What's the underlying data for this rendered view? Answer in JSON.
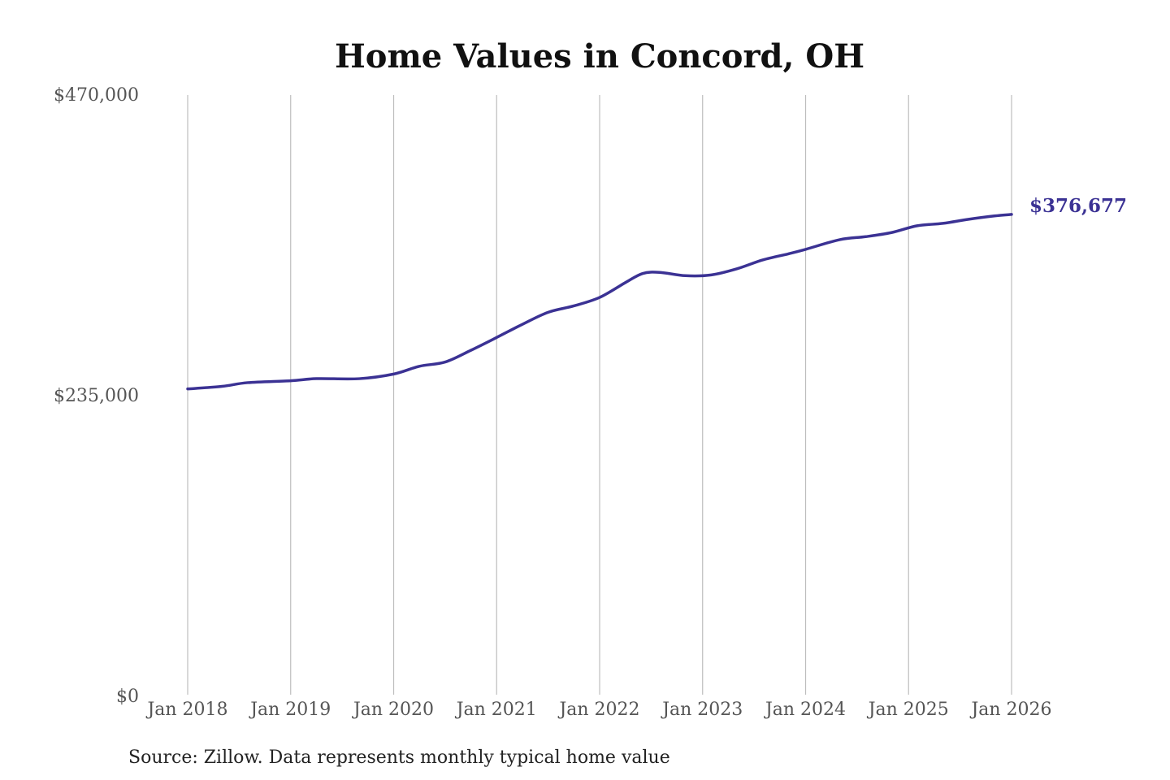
{
  "colors": {
    "series": "#3b3294",
    "grid": "#bdbdbd",
    "title": "#111111",
    "tick_text": "#555555"
  },
  "chart_data": {
    "type": "line",
    "title": "Home Values in Concord, OH",
    "xlabel": "",
    "ylabel": "",
    "ylim": [
      0,
      470000
    ],
    "grid": "vertical",
    "y_ticks": [
      {
        "value": 0,
        "label": "$0"
      },
      {
        "value": 235000,
        "label": "$235,000"
      },
      {
        "value": 470000,
        "label": "$470,000"
      }
    ],
    "x_ticks": [
      {
        "value": "2018-01",
        "label": "Jan 2018"
      },
      {
        "value": "2019-01",
        "label": "Jan 2019"
      },
      {
        "value": "2020-01",
        "label": "Jan 2020"
      },
      {
        "value": "2021-01",
        "label": "Jan 2021"
      },
      {
        "value": "2022-01",
        "label": "Jan 2022"
      },
      {
        "value": "2023-01",
        "label": "Jan 2023"
      },
      {
        "value": "2024-01",
        "label": "Jan 2024"
      },
      {
        "value": "2025-01",
        "label": "Jan 2025"
      },
      {
        "value": "2026-01",
        "label": "Jan 2026"
      }
    ],
    "series": [
      {
        "points": [
          {
            "x": "2018-01",
            "y": 240300
          },
          {
            "x": "2018-05",
            "y": 242300
          },
          {
            "x": "2018-08",
            "y": 245200
          },
          {
            "x": "2019-01",
            "y": 246700
          },
          {
            "x": "2019-04",
            "y": 248300
          },
          {
            "x": "2019-09",
            "y": 248300
          },
          {
            "x": "2020-01",
            "y": 251900
          },
          {
            "x": "2020-04",
            "y": 258000
          },
          {
            "x": "2020-07",
            "y": 261300
          },
          {
            "x": "2020-10",
            "y": 270500
          },
          {
            "x": "2021-01",
            "y": 280500
          },
          {
            "x": "2021-04",
            "y": 290800
          },
          {
            "x": "2021-07",
            "y": 300200
          },
          {
            "x": "2021-10",
            "y": 305200
          },
          {
            "x": "2022-01",
            "y": 311800
          },
          {
            "x": "2022-04",
            "y": 323400
          },
          {
            "x": "2022-06",
            "y": 330500
          },
          {
            "x": "2022-08",
            "y": 331400
          },
          {
            "x": "2022-11",
            "y": 328800
          },
          {
            "x": "2023-02",
            "y": 329400
          },
          {
            "x": "2023-05",
            "y": 334200
          },
          {
            "x": "2023-08",
            "y": 341100
          },
          {
            "x": "2023-11",
            "y": 345900
          },
          {
            "x": "2024-01",
            "y": 349400
          },
          {
            "x": "2024-05",
            "y": 357000
          },
          {
            "x": "2024-08",
            "y": 359300
          },
          {
            "x": "2024-11",
            "y": 362500
          },
          {
            "x": "2025-02",
            "y": 367800
          },
          {
            "x": "2025-05",
            "y": 369700
          },
          {
            "x": "2025-08",
            "y": 372900
          },
          {
            "x": "2025-11",
            "y": 375500
          },
          {
            "x": "2026-01",
            "y": 376677
          }
        ]
      }
    ],
    "end_label": "$376,677",
    "source": "Source: Zillow. Data represents monthly typical home value"
  }
}
